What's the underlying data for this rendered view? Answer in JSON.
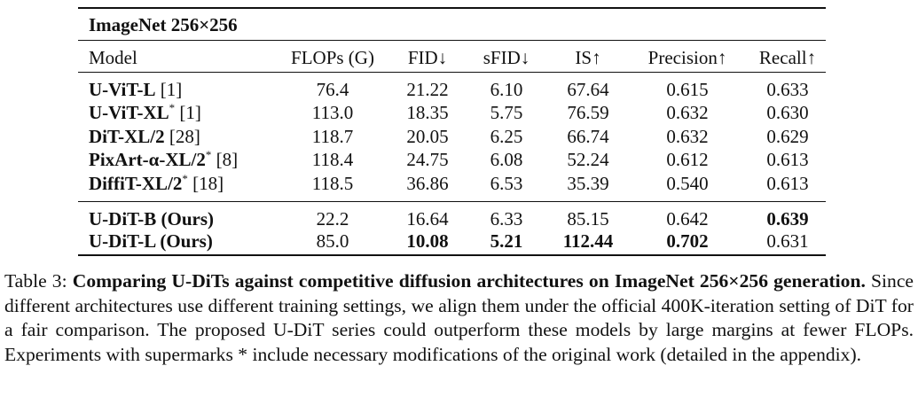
{
  "table": {
    "title": "ImageNet 256×256",
    "headers": [
      "Model",
      "FLOPs (G)",
      "FID↓",
      "sFID↓",
      "IS↑",
      "Precision↑",
      "Recall↑"
    ],
    "groups": [
      [
        {
          "model": "U-ViT-L",
          "model_sup": "",
          "cite": "[1]",
          "cells": [
            {
              "v": "76.4"
            },
            {
              "v": "21.22"
            },
            {
              "v": "6.10"
            },
            {
              "v": "67.64"
            },
            {
              "v": "0.615"
            },
            {
              "v": "0.633"
            }
          ]
        },
        {
          "model": "U-ViT-XL",
          "model_sup": "*",
          "cite": "[1]",
          "cells": [
            {
              "v": "113.0"
            },
            {
              "v": "18.35"
            },
            {
              "v": "5.75"
            },
            {
              "v": "76.59"
            },
            {
              "v": "0.632"
            },
            {
              "v": "0.630"
            }
          ]
        },
        {
          "model": "DiT-XL/2",
          "model_sup": "",
          "cite": "[28]",
          "cells": [
            {
              "v": "118.7"
            },
            {
              "v": "20.05"
            },
            {
              "v": "6.25"
            },
            {
              "v": "66.74"
            },
            {
              "v": "0.632"
            },
            {
              "v": "0.629"
            }
          ]
        },
        {
          "model": "PixArt-α-XL/2",
          "model_sup": "*",
          "cite": "[8]",
          "cells": [
            {
              "v": "118.4"
            },
            {
              "v": "24.75"
            },
            {
              "v": "6.08"
            },
            {
              "v": "52.24"
            },
            {
              "v": "0.612"
            },
            {
              "v": "0.613"
            }
          ]
        },
        {
          "model": "DiffiT-XL/2",
          "model_sup": "*",
          "cite": "[18]",
          "cells": [
            {
              "v": "118.5"
            },
            {
              "v": "36.86"
            },
            {
              "v": "6.53"
            },
            {
              "v": "35.39"
            },
            {
              "v": "0.540"
            },
            {
              "v": "0.613"
            }
          ]
        }
      ],
      [
        {
          "model": "U-DiT-B (Ours)",
          "model_sup": "",
          "cite": "",
          "cells": [
            {
              "v": "22.2"
            },
            {
              "v": "16.64"
            },
            {
              "v": "6.33"
            },
            {
              "v": "85.15"
            },
            {
              "v": "0.642"
            },
            {
              "v": "0.639",
              "bold": true
            }
          ]
        },
        {
          "model": "U-DiT-L (Ours)",
          "model_sup": "",
          "cite": "",
          "cells": [
            {
              "v": "85.0"
            },
            {
              "v": "10.08",
              "bold": true
            },
            {
              "v": "5.21",
              "bold": true
            },
            {
              "v": "112.44",
              "bold": true
            },
            {
              "v": "0.702",
              "bold": true
            },
            {
              "v": "0.631"
            }
          ]
        }
      ]
    ]
  },
  "caption": {
    "label": "Table 3:",
    "bold": "Comparing U-DiTs against competitive diffusion architectures on ImageNet 256×256 generation.",
    "text": "Since different architectures use different training settings, we align them under the official 400K-iteration setting of DiT for a fair comparison. The proposed U-DiT series could outperform these models by large margins at fewer FLOPs. Experiments with supermarks * include necessary modifications of the original work (detailed in the appendix)."
  }
}
